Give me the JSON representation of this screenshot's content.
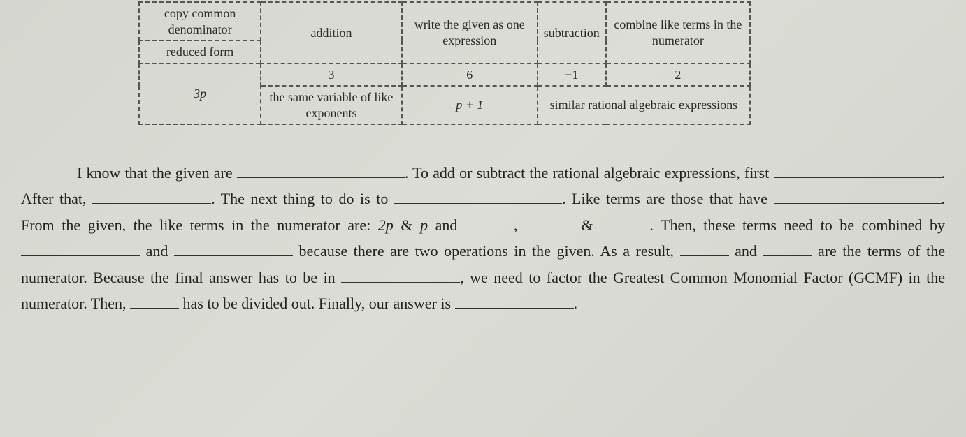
{
  "colors": {
    "page_bg": "#d8dad4",
    "text": "#2a2a2a",
    "border_dash": "#555555",
    "underline": "#333333"
  },
  "typography": {
    "cell_fontsize": 18,
    "body_fontsize": 22,
    "body_lineheight": 1.7,
    "font_family": "Georgia, Times New Roman, serif"
  },
  "table": {
    "rows": [
      [
        {
          "text": "copy common denominator",
          "rowspan": 1
        },
        {
          "text": "addition",
          "rowspan": 2
        },
        {
          "text": "write the given as one expression",
          "rowspan": 2
        },
        {
          "text": "subtraction",
          "rowspan": 2
        },
        {
          "text": "combine like terms in the numerator",
          "rowspan": 2
        }
      ],
      [
        {
          "text": "reduced form",
          "rowspan": 1
        }
      ],
      [
        {
          "text": "3p",
          "rowspan": 2,
          "italic": true
        },
        {
          "text": "3",
          "rowspan": 1
        },
        {
          "text": "6",
          "rowspan": 1
        },
        {
          "text": "−1",
          "rowspan": 1
        },
        {
          "text": "2",
          "rowspan": 1
        }
      ],
      [
        {
          "text": "the same variable of like exponents",
          "rowspan": 1
        },
        {
          "text": "p + 1",
          "rowspan": 1,
          "italic": true
        },
        {
          "text": "similar rational algebraic expressions",
          "rowspan": 1,
          "colspan": 2
        }
      ]
    ]
  },
  "para": {
    "t1": "I know that the given are ",
    "t2": ". To add or subtract the rational algebraic expressions, first",
    "t3": ". After that, ",
    "t4": ". The next thing to do is to ",
    "t5": ". Like terms are those that have ",
    "t6": ". From the given, the like terms in the numerator are: ",
    "t6a": "2p",
    "t6b": " & ",
    "t6c": "p",
    "t6d": " and ",
    "t7": ", ",
    "t8": " & ",
    "t9": ". Then, these terms need to be combined by ",
    "t10": " and ",
    "t11": " because there are two operations in the given. As a result, ",
    "t12": " and ",
    "t13": " are the terms of the numerator. Because the final answer has to be in ",
    "t14": ", we need to factor the Greatest Common Monomial Factor (GCMF) in the numerator. Then, ",
    "t15": " has to be divided out. Finally, our answer is ",
    "t16": "."
  }
}
